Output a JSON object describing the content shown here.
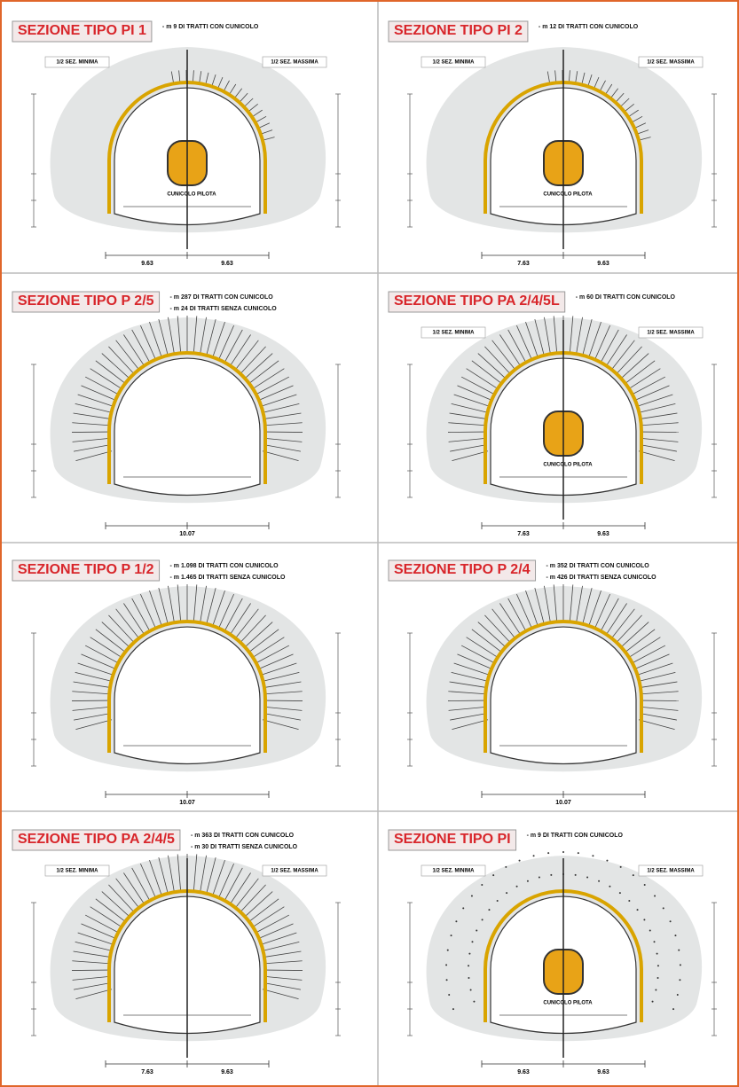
{
  "panels": [
    {
      "title": "SEZIONE TIPO PI 1",
      "notes": [
        "- m 9 DI TRATTI CON CUNICOLO"
      ],
      "half_sections": [
        "1/2 SEZ. MINIMA",
        "1/2 SEZ. MASSIMA"
      ],
      "annotations": [
        "CUNICOLO PILOTA"
      ],
      "dimensions": [
        "9.63",
        "9.63"
      ]
    },
    {
      "title": "SEZIONE TIPO PI 2",
      "notes": [
        "- m 12 DI TRATTI CON CUNICOLO"
      ],
      "half_sections": [
        "1/2 SEZ. MINIMA",
        "1/2 SEZ. MASSIMA"
      ],
      "annotations": [
        "CUNICOLO PILOTA"
      ],
      "dimensions": [
        "7.63",
        "9.63"
      ]
    },
    {
      "title": "SEZIONE TIPO P 2/5",
      "notes": [
        "- m 287 DI TRATTI CON CUNICOLO",
        "- m 24 DI TRATTI SENZA CUNICOLO"
      ],
      "half_sections": [],
      "annotations": [],
      "dimensions": [
        "10.07"
      ]
    },
    {
      "title": "SEZIONE TIPO PA 2/4/5L",
      "notes": [
        "- m 60 DI TRATTI CON CUNICOLO"
      ],
      "half_sections": [
        "1/2 SEZ. MINIMA",
        "1/2 SEZ. MASSIMA"
      ],
      "annotations": [
        "CUNICOLO PILOTA"
      ],
      "dimensions": [
        "7.63",
        "9.63"
      ]
    },
    {
      "title": "SEZIONE TIPO P 1/2",
      "notes": [
        "- m 1.098 DI TRATTI CON CUNICOLO",
        "- m 1.465 DI TRATTI SENZA CUNICOLO"
      ],
      "half_sections": [],
      "annotations": [],
      "dimensions": [
        "10.07"
      ]
    },
    {
      "title": "SEZIONE TIPO P 2/4",
      "notes": [
        "- m 352 DI TRATTI CON CUNICOLO",
        "- m 426 DI TRATTI SENZA CUNICOLO"
      ],
      "half_sections": [],
      "annotations": [],
      "dimensions": [
        "10.07"
      ]
    },
    {
      "title": "SEZIONE TIPO PA 2/4/5",
      "notes": [
        "- m 363 DI TRATTI CON CUNICOLO",
        "- m 30 DI TRATTI SENZA CUNICOLO"
      ],
      "half_sections": [
        "1/2 SEZ. MINIMA",
        "1/2 SEZ. MASSIMA"
      ],
      "annotations": [],
      "dimensions": [
        "7.63",
        "9.63"
      ]
    },
    {
      "title": "SEZIONE TIPO PI",
      "notes": [
        "- m 9 DI TRATTI CON CUNICOLO"
      ],
      "half_sections": [
        "1/2 SEZ. MINIMA",
        "1/2 SEZ. MASSIMA"
      ],
      "annotations": [
        "CUNICOLO PILOTA"
      ],
      "dimensions": [
        "9.63",
        "9.63"
      ]
    }
  ]
}
